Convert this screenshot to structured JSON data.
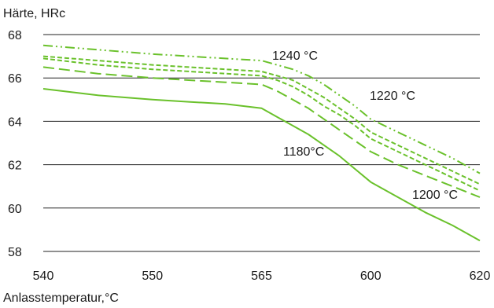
{
  "chart_data": {
    "type": "line",
    "title": "",
    "ylabel": "Härte, HRc",
    "xlabel": "Anlasstemperatur,°C",
    "x_categories": [
      "540",
      "550",
      "565",
      "600",
      "620"
    ],
    "ylim": [
      58,
      68
    ],
    "yticks": [
      "58",
      "60",
      "62",
      "64",
      "66",
      "68"
    ],
    "grid": "horizontal",
    "line_color": "#6ac12b",
    "series": [
      {
        "name": "1240 °C",
        "style": "dash-dot-dot",
        "x": [
          540,
          545,
          550,
          555,
          560,
          565,
          570,
          575,
          580,
          585,
          590,
          595,
          600,
          605,
          610,
          615,
          620
        ],
        "y": [
          67.5,
          67.3,
          67.1,
          67.0,
          66.9,
          66.8,
          66.6,
          66.4,
          66.1,
          65.7,
          65.2,
          64.7,
          64.1,
          63.5,
          62.9,
          62.3,
          61.6
        ]
      },
      {
        "name": "1220 °C",
        "style": "short-dash",
        "x": [
          540,
          545,
          550,
          555,
          560,
          565,
          570,
          575,
          580,
          585,
          590,
          595,
          600,
          605,
          610,
          615,
          620
        ],
        "y": [
          67.0,
          66.8,
          66.6,
          66.5,
          66.4,
          66.3,
          66.1,
          65.9,
          65.5,
          65.1,
          64.6,
          64.1,
          63.5,
          62.9,
          62.3,
          61.7,
          61.1
        ]
      },
      {
        "name": "",
        "style": "short-dash",
        "x": [
          540,
          545,
          550,
          555,
          560,
          565,
          570,
          575,
          580,
          585,
          590,
          595,
          600,
          605,
          610,
          615,
          620
        ],
        "y": [
          66.9,
          66.6,
          66.4,
          66.3,
          66.2,
          66.1,
          65.9,
          65.6,
          65.2,
          64.7,
          64.3,
          63.8,
          63.2,
          62.6,
          62.0,
          61.4,
          60.8
        ]
      },
      {
        "name": "1200 °C",
        "style": "long-dash",
        "x": [
          540,
          545,
          550,
          555,
          560,
          565,
          570,
          575,
          580,
          585,
          590,
          595,
          600,
          605,
          610,
          615,
          620
        ],
        "y": [
          66.5,
          66.2,
          66.0,
          65.9,
          65.8,
          65.7,
          65.4,
          65.0,
          64.6,
          64.1,
          63.6,
          63.1,
          62.6,
          62.0,
          61.5,
          61.0,
          60.5
        ]
      },
      {
        "name": "1180°C",
        "style": "solid",
        "x": [
          540,
          545,
          550,
          555,
          560,
          565,
          570,
          575,
          580,
          585,
          590,
          595,
          600,
          605,
          610,
          615,
          620
        ],
        "y": [
          65.5,
          65.2,
          65.0,
          64.9,
          64.8,
          64.6,
          64.2,
          63.8,
          63.4,
          62.9,
          62.4,
          61.8,
          61.2,
          60.5,
          59.8,
          59.2,
          58.5
        ]
      }
    ],
    "annotations": [
      {
        "text": "1240 °C",
        "series": 0
      },
      {
        "text": "1220 °C",
        "series": 1
      },
      {
        "text": "1180°C",
        "series": 4
      },
      {
        "text": "1200 °C",
        "series": 3
      }
    ]
  }
}
